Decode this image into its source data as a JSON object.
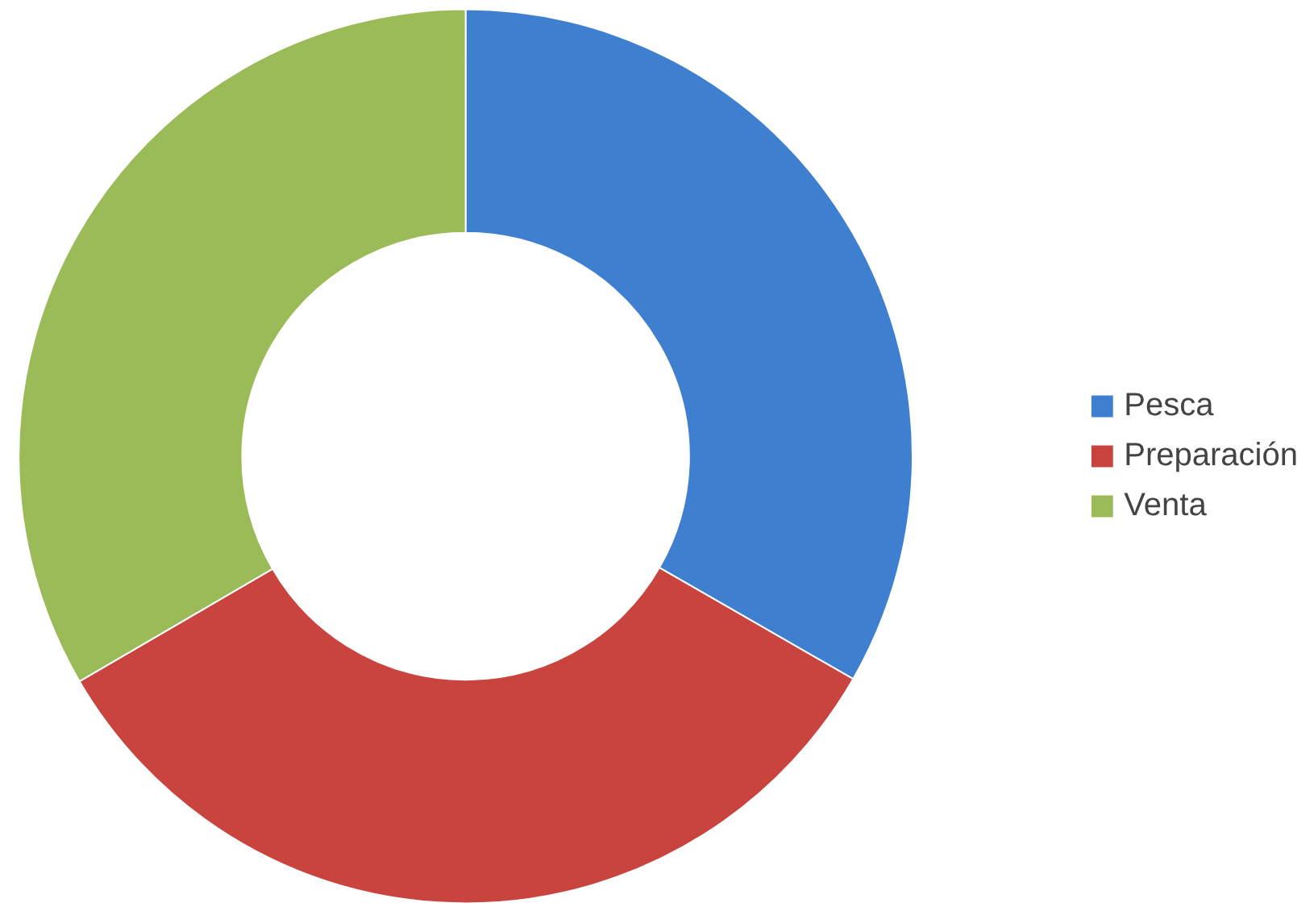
{
  "chart_data": {
    "type": "donut",
    "categories": [
      "Pesca",
      "Preparación",
      "Venta"
    ],
    "values": [
      33.3,
      33.3,
      33.4
    ],
    "colors": [
      "#3f7fd0",
      "#c9433f",
      "#9bbb59"
    ],
    "legend": "right"
  }
}
